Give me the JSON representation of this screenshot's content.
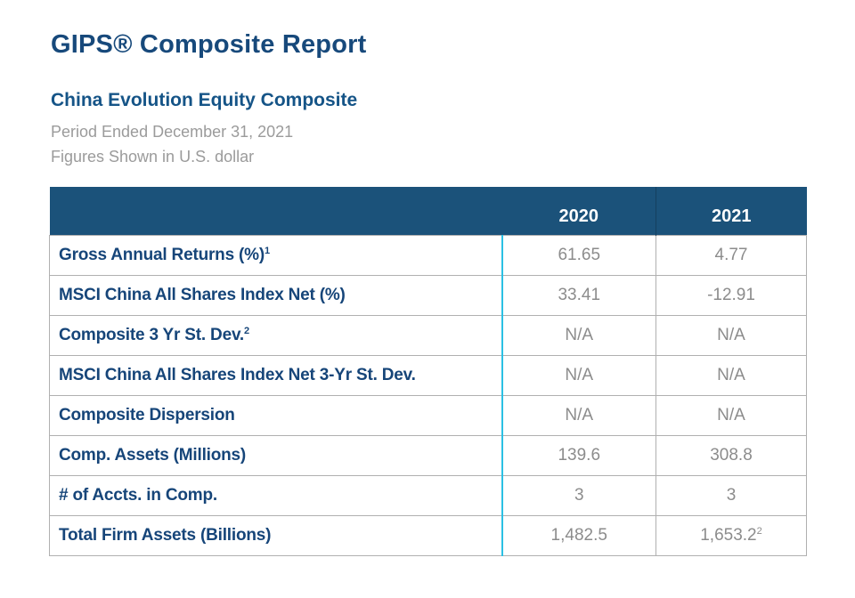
{
  "page": {
    "title": "GIPS® Composite Report",
    "subtitle": "China Evolution Equity Composite",
    "period_line": "Period Ended December 31, 2021",
    "currency_line": "Figures Shown in U.S. dollar"
  },
  "colors": {
    "title_blue": "#17497B",
    "subtitle_blue": "#155487",
    "muted_gray": "#9B9B9B",
    "header_bg": "#1B527A",
    "header_text": "#FFFFFF",
    "label_blue": "#164579",
    "value_gray": "#8C8C8C",
    "border_gray": "#B0B0B0",
    "accent_cyan": "#2BC0E4"
  },
  "table": {
    "header": {
      "col_2020": "2020",
      "col_2021": "2021"
    },
    "rows": [
      {
        "label": "Gross Annual Returns (%)",
        "label_sup": "1",
        "v2020": "61.65",
        "s2020": "",
        "v2021": "4.77",
        "s2021": ""
      },
      {
        "label": "MSCI China All Shares Index Net (%)",
        "label_sup": "",
        "v2020": "33.41",
        "s2020": "",
        "v2021": "-12.91",
        "s2021": ""
      },
      {
        "label": "Composite 3 Yr St. Dev.",
        "label_sup": "2",
        "v2020": "N/A",
        "s2020": "",
        "v2021": "N/A",
        "s2021": ""
      },
      {
        "label": "MSCI China All Shares Index Net 3-Yr St. Dev.",
        "label_sup": "",
        "v2020": "N/A",
        "s2020": "",
        "v2021": "N/A",
        "s2021": ""
      },
      {
        "label": "Composite Dispersion",
        "label_sup": "",
        "v2020": "N/A",
        "s2020": "",
        "v2021": "N/A",
        "s2021": ""
      },
      {
        "label": "Comp. Assets (Millions)",
        "label_sup": "",
        "v2020": "139.6",
        "s2020": "",
        "v2021": "308.8",
        "s2021": ""
      },
      {
        "label": "# of Accts. in Comp.",
        "label_sup": "",
        "v2020": "3",
        "s2020": "",
        "v2021": "3",
        "s2021": ""
      },
      {
        "label": "Total Firm Assets (Billions)",
        "label_sup": "",
        "v2020": "1,482.5",
        "s2020": "",
        "v2021": "1,653.2",
        "s2021": "2"
      }
    ]
  }
}
